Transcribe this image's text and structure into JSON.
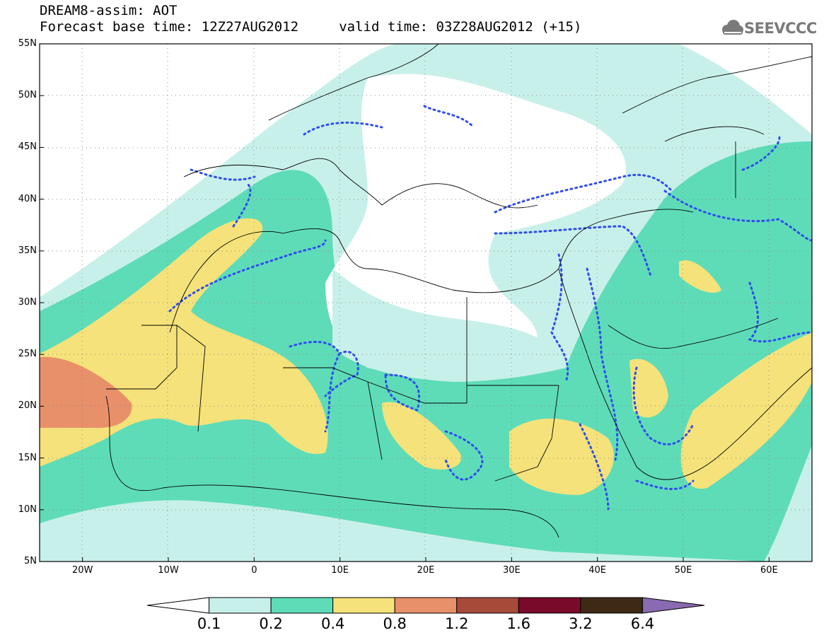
{
  "title": {
    "line1": "DREAM8-assim: AOT",
    "line2": "Forecast base time: 12Z27AUG2012     valid time: 03Z28AUG2012 (+15)"
  },
  "logo": {
    "text": "SEEVCCC",
    "icon": "cloud-icon"
  },
  "map": {
    "lon_range": [
      -25,
      65
    ],
    "lat_range": [
      5,
      55
    ],
    "lon_ticks": [
      {
        "lon": -20,
        "label": "20W"
      },
      {
        "lon": -10,
        "label": "10W"
      },
      {
        "lon": 0,
        "label": "0"
      },
      {
        "lon": 10,
        "label": "10E"
      },
      {
        "lon": 20,
        "label": "20E"
      },
      {
        "lon": 30,
        "label": "30E"
      },
      {
        "lon": 40,
        "label": "40E"
      },
      {
        "lon": 50,
        "label": "50E"
      },
      {
        "lon": 60,
        "label": "60E"
      }
    ],
    "lat_ticks": [
      {
        "lat": 55,
        "label": "55N"
      },
      {
        "lat": 50,
        "label": "50N"
      },
      {
        "lat": 45,
        "label": "45N"
      },
      {
        "lat": 40,
        "label": "40N"
      },
      {
        "lat": 35,
        "label": "35N"
      },
      {
        "lat": 30,
        "label": "30N"
      },
      {
        "lat": 25,
        "label": "25N"
      },
      {
        "lat": 20,
        "label": "20N"
      },
      {
        "lat": 15,
        "label": "15N"
      },
      {
        "lat": 10,
        "label": "10N"
      },
      {
        "lat": 5,
        "label": "5N"
      }
    ]
  },
  "colorbar": {
    "levels": [
      "0.1",
      "0.2",
      "0.4",
      "0.8",
      "1.2",
      "1.6",
      "3.2",
      "6.4"
    ],
    "colors": [
      "#ffffff",
      "#c8f0ea",
      "#5edcb8",
      "#f5e27a",
      "#e8906a",
      "#a84a3a",
      "#7a0a2a",
      "#3e2a14",
      "#8a6ab0"
    ]
  }
}
